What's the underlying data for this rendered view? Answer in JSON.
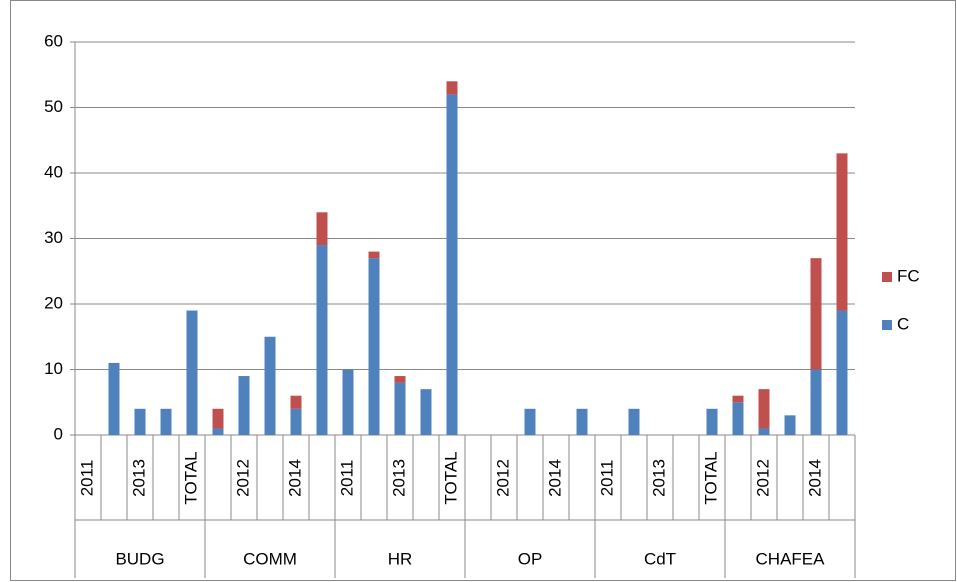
{
  "chart_data": {
    "type": "stacked_bar",
    "categories": [
      "2011",
      null,
      "2013",
      null,
      "TOTAL",
      null,
      "2012",
      null,
      "2014",
      null,
      "2011",
      null,
      "2013",
      null,
      "TOTAL",
      null,
      "2012",
      null,
      "2014",
      null,
      "2011",
      null,
      "2013",
      null,
      "TOTAL",
      null,
      "2012",
      null,
      "2014",
      null
    ],
    "groups": [
      "BUDG",
      "COMM",
      "HR",
      "OP",
      "CdT",
      "CHAFEA"
    ],
    "series": [
      {
        "name": "C",
        "color": "#4f81bd",
        "values": [
          null,
          11,
          4,
          4,
          19,
          1,
          9,
          15,
          4,
          29,
          10,
          27,
          8,
          7,
          52,
          null,
          null,
          4,
          null,
          4,
          null,
          4,
          null,
          null,
          4,
          5,
          1,
          3,
          10,
          19
        ]
      },
      {
        "name": "FC",
        "color": "#c0504d",
        "values": [
          null,
          null,
          null,
          null,
          null,
          3,
          null,
          null,
          2,
          5,
          null,
          1,
          1,
          null,
          2,
          null,
          null,
          null,
          null,
          null,
          null,
          null,
          null,
          null,
          null,
          1,
          6,
          null,
          17,
          24
        ]
      }
    ],
    "ylim": [
      0,
      60
    ],
    "yticks": [
      0,
      10,
      20,
      30,
      40,
      50,
      60
    ],
    "grid": true,
    "legend": "right"
  }
}
